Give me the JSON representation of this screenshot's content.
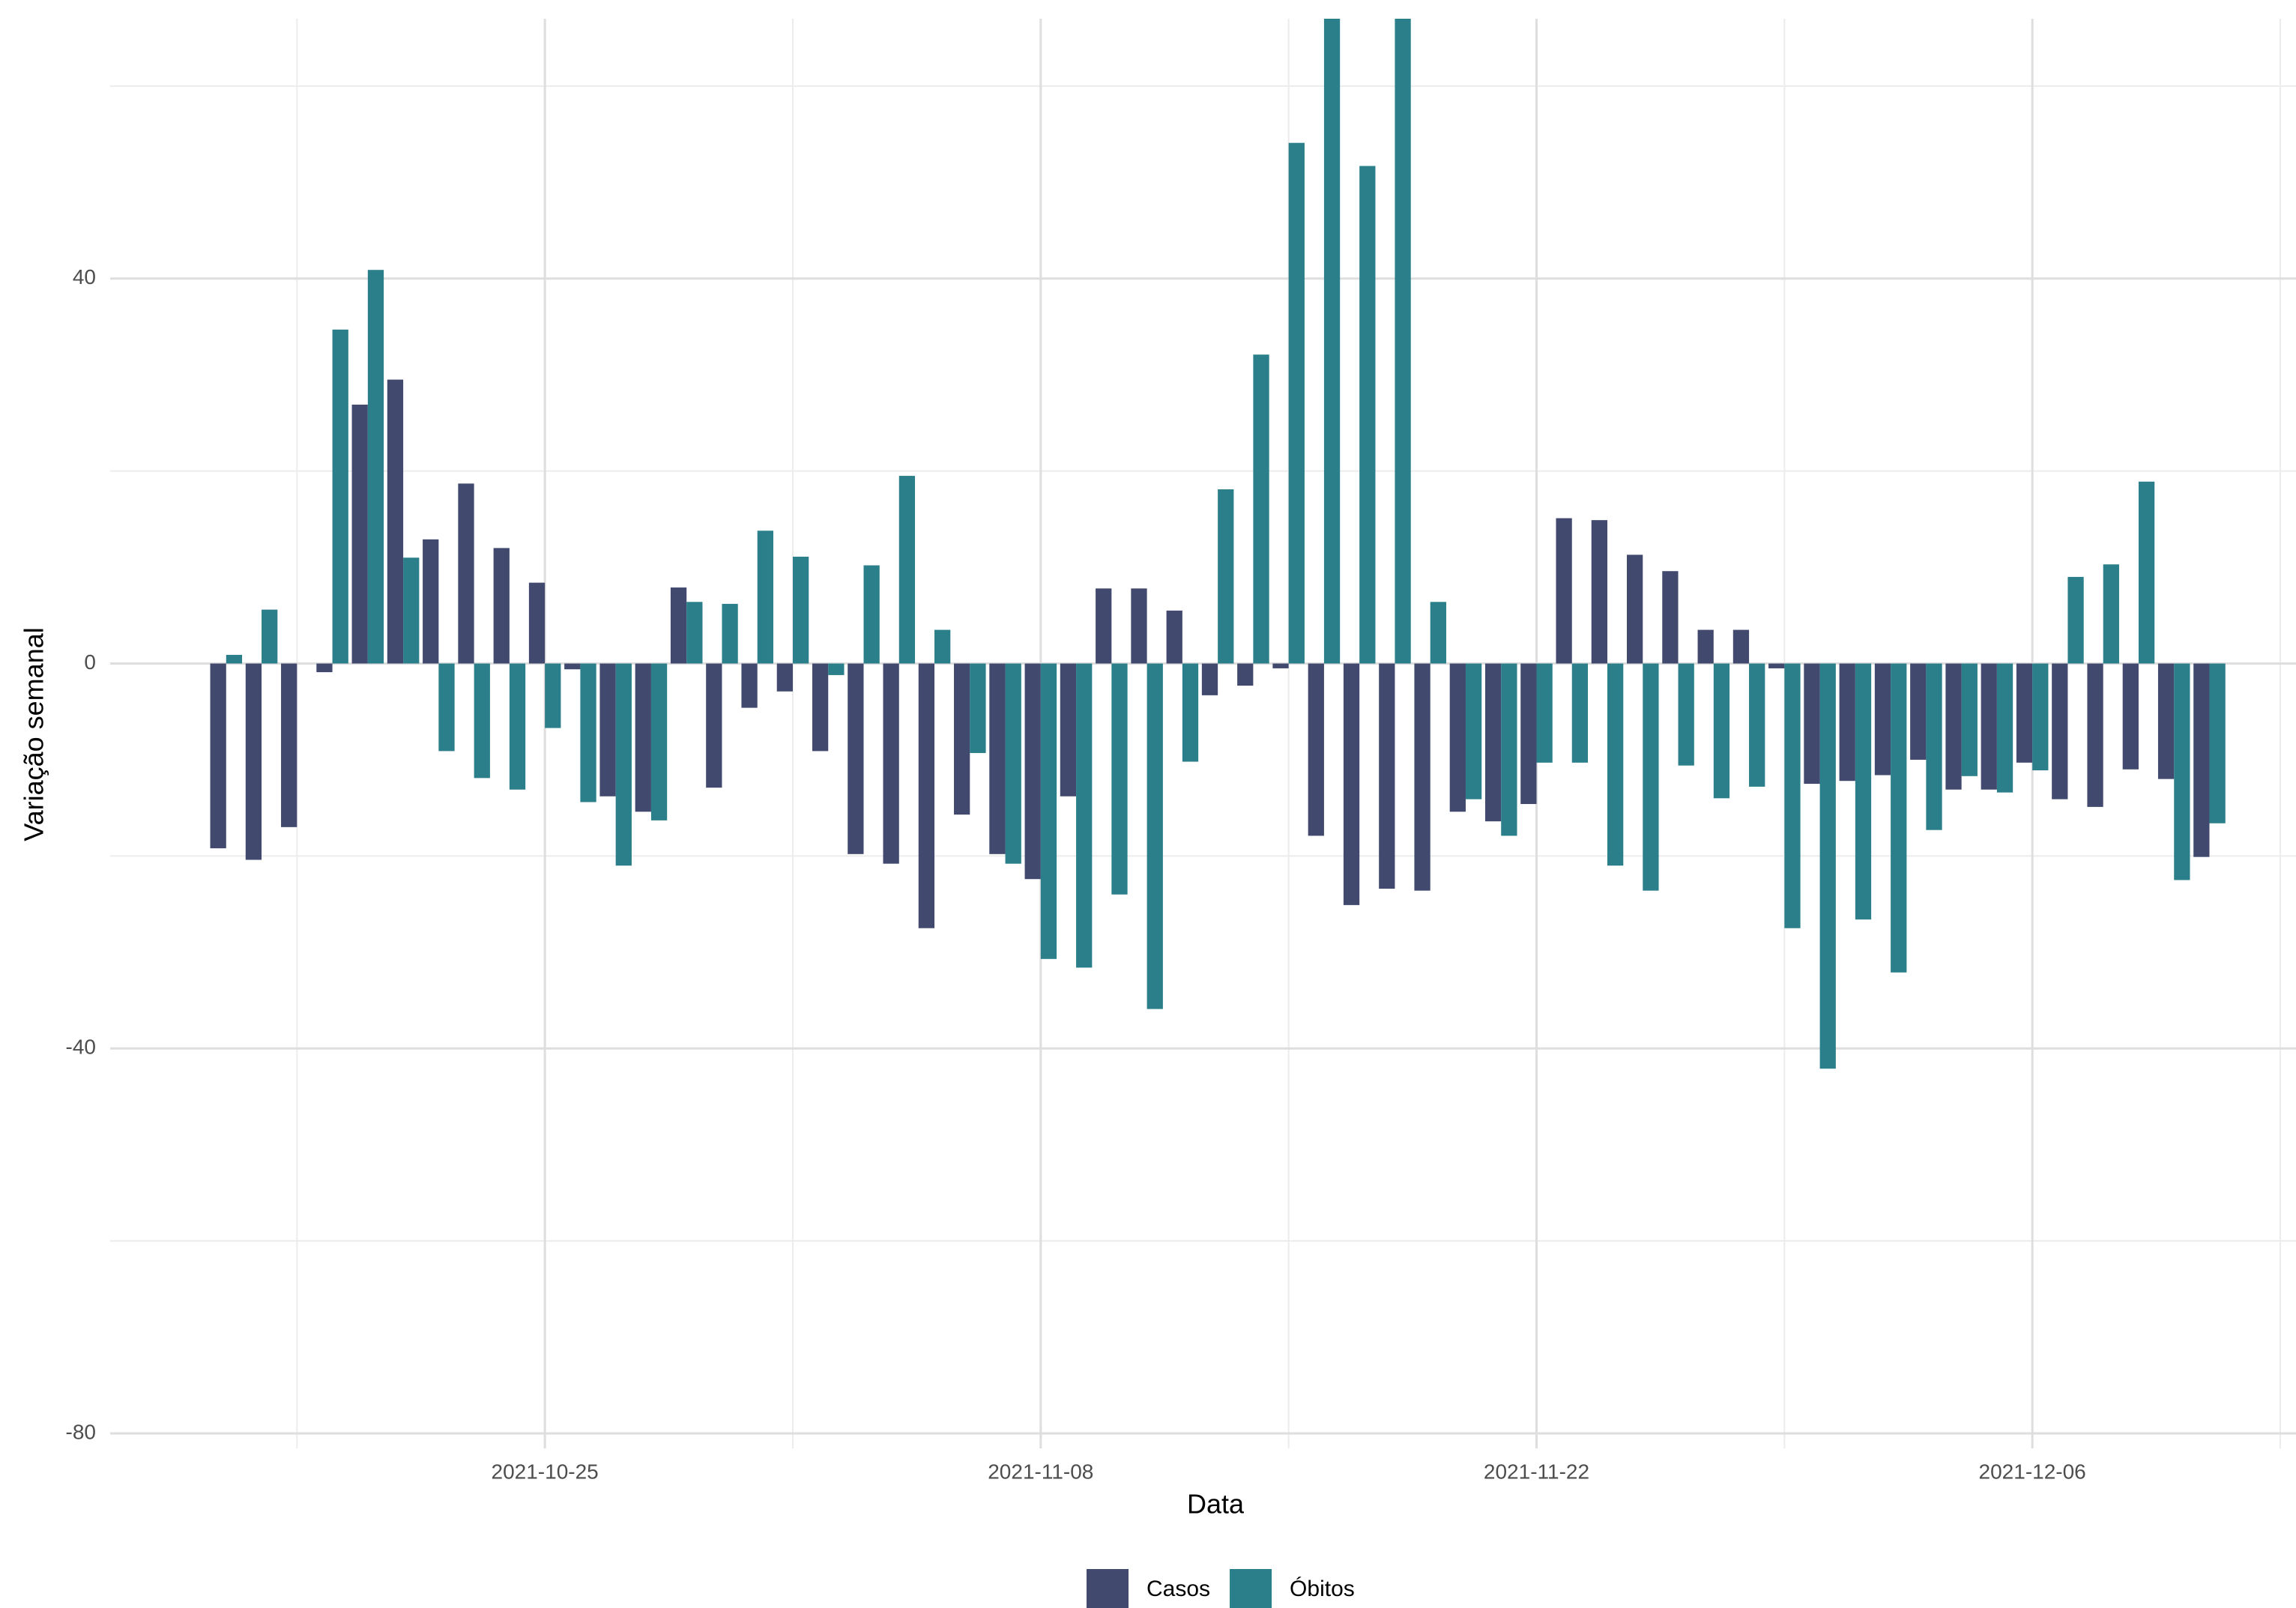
{
  "chart_data": {
    "type": "bar",
    "x_label": "Data",
    "y_label": "Variação semanal",
    "x": [
      "2021-10-16",
      "2021-10-17",
      "2021-10-18",
      "2021-10-19",
      "2021-10-20",
      "2021-10-21",
      "2021-10-22",
      "2021-10-23",
      "2021-10-24",
      "2021-10-25",
      "2021-10-26",
      "2021-10-27",
      "2021-10-28",
      "2021-10-29",
      "2021-10-30",
      "2021-10-31",
      "2021-11-01",
      "2021-11-02",
      "2021-11-03",
      "2021-11-04",
      "2021-11-05",
      "2021-11-06",
      "2021-11-07",
      "2021-11-08",
      "2021-11-09",
      "2021-11-10",
      "2021-11-11",
      "2021-11-12",
      "2021-11-13",
      "2021-11-14",
      "2021-11-15",
      "2021-11-16",
      "2021-11-17",
      "2021-11-18",
      "2021-11-19",
      "2021-11-20",
      "2021-11-21",
      "2021-11-22",
      "2021-11-23",
      "2021-11-24",
      "2021-11-25",
      "2021-11-26",
      "2021-11-27",
      "2021-11-28",
      "2021-11-29",
      "2021-11-30",
      "2021-12-01",
      "2021-12-02",
      "2021-12-03",
      "2021-12-04",
      "2021-12-05",
      "2021-12-06",
      "2021-12-07",
      "2021-12-08",
      "2021-12-09",
      "2021-12-10",
      "2021-12-11"
    ],
    "series": [
      {
        "name": "Casos",
        "color": "#414a6e",
        "values": [
          -19.2,
          -20.4,
          -17.0,
          -0.9,
          26.9,
          29.5,
          12.9,
          18.7,
          12.0,
          8.4,
          -0.6,
          -13.8,
          -15.4,
          7.9,
          -12.9,
          -4.6,
          -2.9,
          -9.1,
          -19.8,
          -20.8,
          -27.5,
          -15.7,
          -19.8,
          -22.4,
          -13.8,
          7.8,
          7.8,
          5.5,
          -3.3,
          -2.3,
          -0.5,
          -17.9,
          -25.1,
          -23.4,
          -23.6,
          -15.4,
          -16.4,
          -14.6,
          15.1,
          14.9,
          11.3,
          9.6,
          3.5,
          3.5,
          -0.5,
          -12.5,
          -12.2,
          -11.6,
          -10.0,
          -13.1,
          -13.1,
          -10.3,
          -14.1,
          -14.9,
          -11.0,
          -12.0,
          -20.1
        ]
      },
      {
        "name": "Óbitos",
        "color": "#2a7f8a",
        "values": [
          0.9,
          5.6,
          0,
          34.7,
          40.9,
          11.0,
          -9.1,
          -11.9,
          -13.1,
          -6.7,
          -14.4,
          -21.0,
          -16.3,
          6.4,
          6.2,
          13.8,
          11.1,
          -1.2,
          10.2,
          19.5,
          3.5,
          -9.3,
          -20.8,
          -30.7,
          -31.6,
          -24.0,
          -35.9,
          -10.2,
          18.1,
          32.1,
          54.1,
          67,
          51.7,
          67,
          6.4,
          -14.1,
          -17.9,
          -10.3,
          -10.3,
          -21.0,
          -23.6,
          -10.6,
          -14.0,
          -12.8,
          -27.5,
          -42.1,
          -26.6,
          -32.1,
          -17.3,
          -11.7,
          -13.4,
          -11.1,
          9.0,
          10.3,
          18.9,
          -22.5,
          -16.6
        ]
      }
    ],
    "xlim": [
      "2021-10-13",
      "2021-12-13"
    ],
    "xticks": [
      "2021-10-25",
      "2021-11-08",
      "2021-11-22",
      "2021-12-06"
    ],
    "ylim": [
      -80,
      67
    ],
    "yticks": [
      -80,
      -40,
      0,
      40
    ],
    "grid": true,
    "legend": "bottom"
  }
}
